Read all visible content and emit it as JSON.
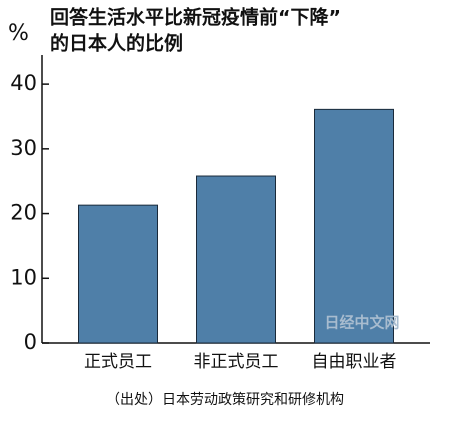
{
  "chart_data": {
    "type": "bar",
    "title": [
      "回答生活水平比新冠疫情前“下降”",
      "的日本人的比例"
    ],
    "y_label": "%",
    "categories": [
      "正式员工",
      "非正式员工",
      "自由职业者"
    ],
    "values": [
      21.3,
      25.8,
      36.1
    ],
    "color": "#4f7fa8",
    "ylim": [
      0,
      44.5
    ],
    "yticks": [
      0,
      10,
      20,
      30,
      40
    ],
    "grid": false,
    "source": "（出处）日本劳动政策研究和研修机构",
    "watermark": "日经中文网"
  }
}
